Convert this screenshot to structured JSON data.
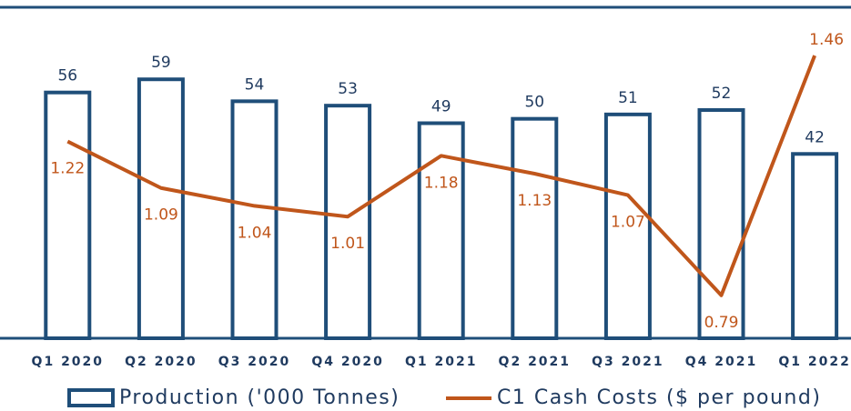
{
  "chart_data": {
    "type": "bar-line",
    "categories": [
      "Q1 2020",
      "Q2 2020",
      "Q3 2020",
      "Q4 2020",
      "Q1 2021",
      "Q2 2021",
      "Q3 2021",
      "Q4 2021",
      "Q1 2022"
    ],
    "series": [
      {
        "name": "Production ('000 Tonnes)",
        "type": "bar",
        "color": "#1f4e79",
        "values": [
          56,
          59,
          54,
          53,
          49,
          50,
          51,
          52,
          42
        ]
      },
      {
        "name": "C1 Cash Costs ($ per pound)",
        "type": "line",
        "axis": "y2",
        "color": "#c0561b",
        "values": [
          1.22,
          1.09,
          1.04,
          1.01,
          1.18,
          1.13,
          1.07,
          0.79,
          1.46
        ]
      }
    ],
    "ylim": [
      0,
      75
    ],
    "y2lim": [
      0.67,
      1.59
    ],
    "legend": "bottom"
  }
}
